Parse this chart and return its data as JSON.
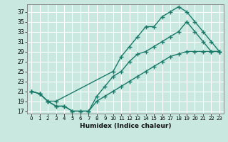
{
  "title": "",
  "xlabel": "Humidex (Indice chaleur)",
  "ylabel": "",
  "bg_color": "#c8e8e0",
  "grid_color": "#ffffff",
  "line_color": "#1a7a6a",
  "xlim": [
    -0.5,
    23.5
  ],
  "ylim": [
    16.5,
    38.5
  ],
  "yticks": [
    17,
    19,
    21,
    23,
    25,
    27,
    29,
    31,
    33,
    35,
    37
  ],
  "xticks": [
    0,
    1,
    2,
    3,
    4,
    5,
    6,
    7,
    8,
    9,
    10,
    11,
    12,
    13,
    14,
    15,
    16,
    17,
    18,
    19,
    20,
    21,
    22,
    23
  ],
  "line1_x": [
    0,
    1,
    2,
    3,
    10,
    11,
    12,
    13,
    14,
    15,
    16,
    17,
    18,
    19,
    20,
    21,
    22,
    23
  ],
  "line1_y": [
    21,
    20.5,
    19,
    19,
    25,
    28,
    30,
    32,
    34,
    34,
    36,
    37,
    38,
    37,
    35,
    33,
    31,
    29
  ],
  "line2_x": [
    0,
    1,
    2,
    3,
    4,
    5,
    6,
    7,
    8,
    9,
    10,
    11,
    12,
    13,
    14,
    15,
    16,
    17,
    18,
    19,
    20,
    21,
    22,
    23
  ],
  "line2_y": [
    21,
    20.5,
    19,
    18,
    18,
    17,
    17,
    17,
    20,
    22,
    24,
    25,
    27,
    28.5,
    29,
    30,
    31,
    32,
    33,
    35,
    33,
    31,
    29,
    29
  ],
  "line3_x": [
    0,
    1,
    2,
    3,
    4,
    5,
    6,
    7,
    8,
    9,
    10,
    11,
    12,
    13,
    14,
    15,
    16,
    17,
    18,
    19,
    20,
    21,
    22,
    23
  ],
  "line3_y": [
    21,
    20.5,
    19,
    18,
    18,
    17,
    17,
    17,
    19,
    20,
    21,
    22,
    23,
    24,
    25,
    26,
    27,
    28,
    28.5,
    29,
    29,
    29,
    29,
    29
  ],
  "marker": "+",
  "markersize": 4,
  "linewidth": 1.0
}
